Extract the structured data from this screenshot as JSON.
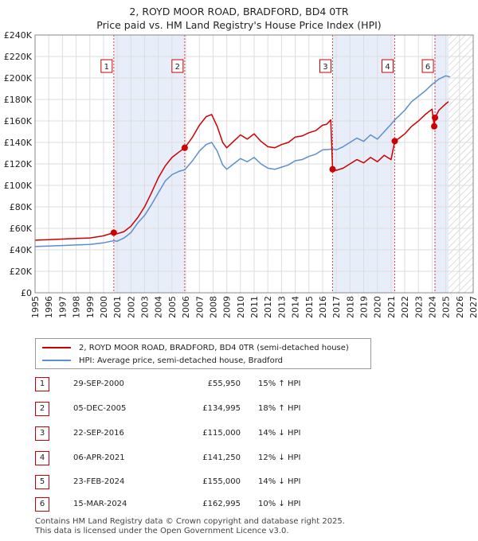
{
  "chart_data": {
    "type": "line",
    "title": "2, ROYD MOOR ROAD, BRADFORD, BD4 0TR",
    "subtitle": "Price paid vs. HM Land Registry's House Price Index (HPI)",
    "xlabel": "",
    "ylabel": "",
    "xlim": [
      1995,
      2027
    ],
    "ylim": [
      0,
      240000
    ],
    "x_ticks": [
      "1995",
      "1996",
      "1997",
      "1998",
      "1999",
      "2000",
      "2001",
      "2002",
      "2003",
      "2004",
      "2005",
      "2006",
      "2007",
      "2008",
      "2009",
      "2010",
      "2011",
      "2012",
      "2013",
      "2014",
      "2015",
      "2016",
      "2017",
      "2018",
      "2019",
      "2020",
      "2021",
      "2022",
      "2023",
      "2024",
      "2025",
      "2026",
      "2027"
    ],
    "y_ticks": [
      {
        "value": 0,
        "label": "£0"
      },
      {
        "value": 20000,
        "label": "£20K"
      },
      {
        "value": 40000,
        "label": "£40K"
      },
      {
        "value": 60000,
        "label": "£60K"
      },
      {
        "value": 80000,
        "label": "£80K"
      },
      {
        "value": 100000,
        "label": "£100K"
      },
      {
        "value": 120000,
        "label": "£120K"
      },
      {
        "value": 140000,
        "label": "£140K"
      },
      {
        "value": 160000,
        "label": "£160K"
      },
      {
        "value": 180000,
        "label": "£180K"
      },
      {
        "value": 200000,
        "label": "£200K"
      },
      {
        "value": 220000,
        "label": "£220K"
      },
      {
        "value": 240000,
        "label": "£240K"
      }
    ],
    "grid": true,
    "shaded_ranges": [
      [
        2000.75,
        2005.93
      ],
      [
        2016.73,
        2021.27
      ],
      [
        2024.15,
        2025.2
      ]
    ],
    "forecast_from": 2025.2,
    "series": [
      {
        "name": "2, ROYD MOOR ROAD, BRADFORD, BD4 0TR (semi-detached house)",
        "color": "#cc0000",
        "x": [
          1995.0,
          1996.0,
          1997.0,
          1998.0,
          1999.0,
          2000.0,
          2000.75,
          2001.0,
          2001.5,
          2002.0,
          2002.5,
          2003.0,
          2003.5,
          2004.0,
          2004.5,
          2005.0,
          2005.5,
          2005.93,
          2006.5,
          2007.0,
          2007.5,
          2007.9,
          2008.3,
          2008.7,
          2009.0,
          2009.5,
          2010.0,
          2010.5,
          2011.0,
          2011.5,
          2012.0,
          2012.5,
          2013.0,
          2013.5,
          2014.0,
          2014.5,
          2015.0,
          2015.5,
          2016.0,
          2016.3,
          2016.6,
          2016.73,
          2017.0,
          2017.5,
          2018.0,
          2018.5,
          2019.0,
          2019.5,
          2020.0,
          2020.5,
          2021.0,
          2021.27,
          2021.6,
          2022.0,
          2022.5,
          2023.0,
          2023.5,
          2024.0,
          2024.15,
          2024.21,
          2024.5,
          2025.0,
          2025.2
        ],
        "values": [
          49000,
          49500,
          50000,
          50500,
          51000,
          53000,
          55950,
          55000,
          57000,
          62000,
          70000,
          80000,
          93000,
          107000,
          118000,
          126000,
          131000,
          134995,
          145000,
          156000,
          164000,
          166000,
          155000,
          140000,
          135000,
          141000,
          147000,
          143000,
          148000,
          141000,
          136000,
          135000,
          138000,
          140000,
          145000,
          146000,
          149000,
          151000,
          156000,
          157000,
          161000,
          115000,
          114000,
          116000,
          120000,
          124000,
          121000,
          126000,
          122000,
          128000,
          124000,
          141250,
          144000,
          148000,
          155000,
          160000,
          166000,
          171000,
          155000,
          162995,
          170000,
          176000,
          178000
        ]
      },
      {
        "name": "HPI: Average price, semi-detached house, Bradford",
        "color": "#5b8fd0",
        "x": [
          1995.0,
          1996.0,
          1997.0,
          1998.0,
          1999.0,
          2000.0,
          2000.75,
          2001.0,
          2001.5,
          2002.0,
          2002.5,
          2003.0,
          2003.5,
          2004.0,
          2004.5,
          2005.0,
          2005.5,
          2005.93,
          2006.5,
          2007.0,
          2007.5,
          2007.9,
          2008.3,
          2008.7,
          2009.0,
          2009.5,
          2010.0,
          2010.5,
          2011.0,
          2011.5,
          2012.0,
          2012.5,
          2013.0,
          2013.5,
          2014.0,
          2014.5,
          2015.0,
          2015.5,
          2016.0,
          2016.5,
          2016.73,
          2017.0,
          2017.5,
          2018.0,
          2018.5,
          2019.0,
          2019.5,
          2020.0,
          2020.5,
          2021.0,
          2021.27,
          2021.6,
          2022.0,
          2022.5,
          2023.0,
          2023.5,
          2024.0,
          2024.21,
          2024.5,
          2025.0,
          2025.3
        ],
        "values": [
          43000,
          43500,
          44000,
          44500,
          45000,
          46500,
          48500,
          48000,
          51000,
          56000,
          65000,
          72000,
          82000,
          93000,
          104000,
          110000,
          113000,
          114500,
          123000,
          132000,
          138000,
          140000,
          132000,
          119000,
          115000,
          120000,
          125000,
          122000,
          126000,
          120000,
          116000,
          115000,
          117000,
          119000,
          123000,
          124000,
          127000,
          129000,
          133000,
          133500,
          134000,
          133000,
          136000,
          140000,
          144000,
          141000,
          147000,
          143000,
          150000,
          157000,
          161000,
          165000,
          170000,
          178000,
          183000,
          188000,
          194000,
          196000,
          199000,
          202000,
          201000
        ]
      }
    ],
    "sales": [
      {
        "id": "1",
        "x": 2000.75,
        "value": 55950,
        "date": "29-SEP-2000",
        "price": "£55,950",
        "hpi": "15% ↑ HPI"
      },
      {
        "id": "2",
        "x": 2005.93,
        "value": 134995,
        "date": "05-DEC-2005",
        "price": "£134,995",
        "hpi": "18% ↑ HPI"
      },
      {
        "id": "3",
        "x": 2016.73,
        "value": 115000,
        "date": "22-SEP-2016",
        "price": "£115,000",
        "hpi": "14% ↓ HPI"
      },
      {
        "id": "4",
        "x": 2021.27,
        "value": 141250,
        "date": "06-APR-2021",
        "price": "£141,250",
        "hpi": "12% ↓ HPI"
      },
      {
        "id": "5",
        "x": 2024.15,
        "value": 155000,
        "date": "23-FEB-2024",
        "price": "£155,000",
        "hpi": "14% ↓ HPI"
      },
      {
        "id": "6",
        "x": 2024.21,
        "value": 162995,
        "date": "15-MAR-2024",
        "price": "£162,995",
        "hpi": "10% ↓ HPI"
      }
    ],
    "chart_markers": [
      {
        "id": "1",
        "x": 2000.75
      },
      {
        "id": "2",
        "x": 2005.93
      },
      {
        "id": "3",
        "x": 2016.73
      },
      {
        "id": "4",
        "x": 2021.27
      },
      {
        "id": "6",
        "x": 2024.21
      }
    ]
  },
  "legend": {
    "property_label": "2, ROYD MOOR ROAD, BRADFORD, BD4 0TR (semi-detached house)",
    "hpi_label": "HPI: Average price, semi-detached house, Bradford",
    "property_color": "#cc0000",
    "hpi_color": "#5b8fd0"
  },
  "footer": {
    "line1": "Contains HM Land Registry data © Crown copyright and database right 2025.",
    "line2": "This data is licensed under the Open Government Licence v3.0."
  }
}
